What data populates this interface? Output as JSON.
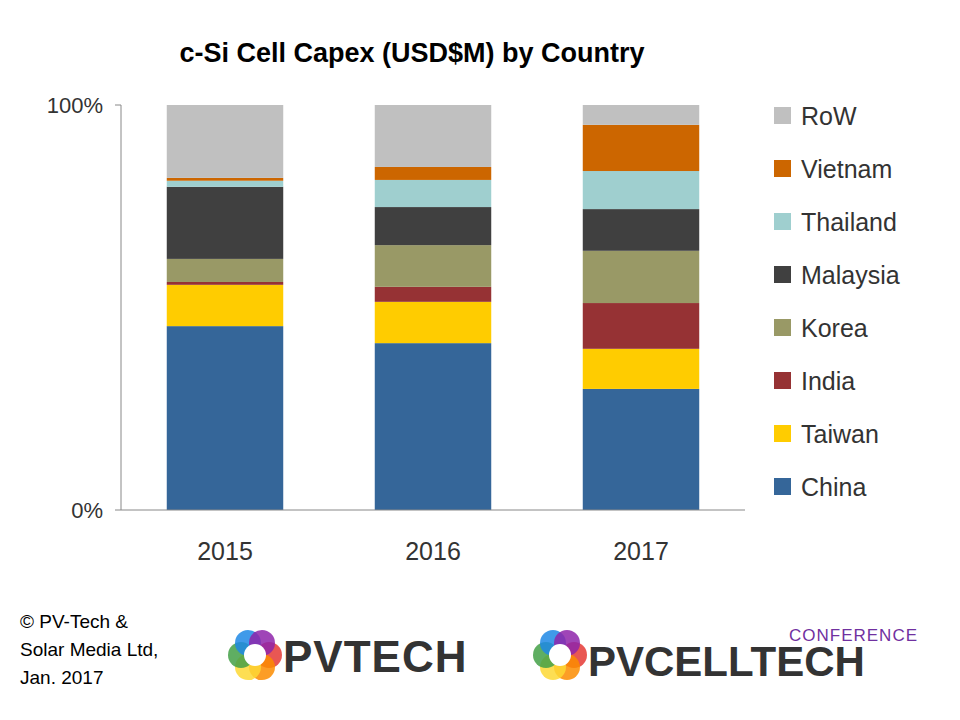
{
  "chart_data": {
    "type": "bar",
    "title": "c-Si Cell Capex (USD$M) by Country",
    "categories": [
      "2015",
      "2016",
      "2017"
    ],
    "stacked": true,
    "grid": false,
    "legend": "right",
    "ylim": [
      0,
      100
    ],
    "yticks": [
      {
        "value": 0,
        "label": "0%"
      },
      {
        "value": 100,
        "label": "100%"
      }
    ],
    "series": [
      {
        "name": "China",
        "color": "#356699",
        "values": [
          45.4,
          41.2,
          29.9
        ]
      },
      {
        "name": "Taiwan",
        "color": "#ffcc00",
        "values": [
          10.2,
          10.2,
          9.9
        ]
      },
      {
        "name": "India",
        "color": "#963234",
        "values": [
          0.7,
          3.7,
          11.3
        ]
      },
      {
        "name": "Korea",
        "color": "#999966",
        "values": [
          5.7,
          10.3,
          12.9
        ]
      },
      {
        "name": "Malaysia",
        "color": "#404040",
        "values": [
          17.8,
          9.4,
          10.3
        ]
      },
      {
        "name": "Thailand",
        "color": "#9fcfcf",
        "values": [
          1.5,
          6.7,
          9.4
        ]
      },
      {
        "name": "Vietnam",
        "color": "#cc6600",
        "values": [
          0.7,
          3.2,
          11.4
        ]
      },
      {
        "name": "RoW",
        "color": "#c0c0c0",
        "values": [
          18.0,
          15.3,
          4.9
        ]
      }
    ],
    "annotations": [
      "© PV-Tech &",
      "Solar Media Ltd,",
      "Jan. 2017",
      "PVTECH",
      "CONFERENCE",
      "PVCELLTECH"
    ]
  }
}
